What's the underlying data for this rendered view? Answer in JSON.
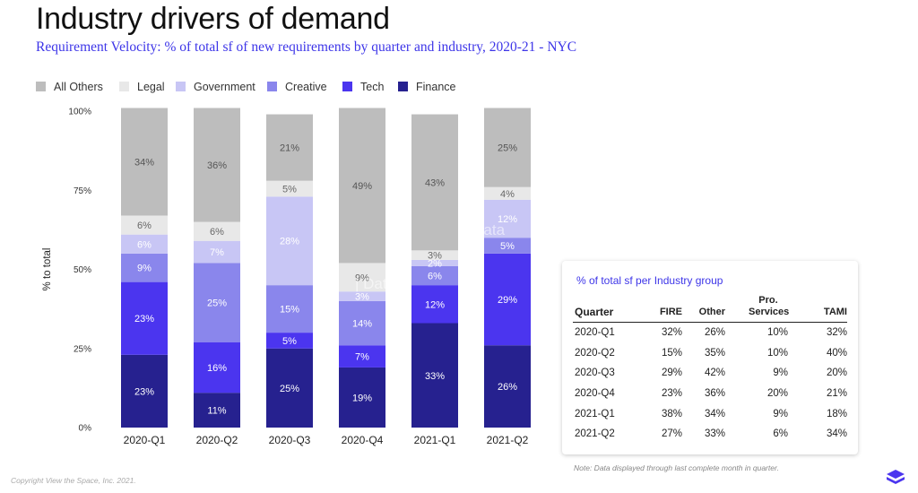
{
  "title": "Industry drivers of demand",
  "subtitle": "Requirement Velocity: % of total sf of new requirements by quarter and industry, 2020-21 - NYC",
  "chart_data": {
    "type": "bar",
    "stacked": true,
    "categories": [
      "2020-Q1",
      "2020-Q2",
      "2020-Q3",
      "2020-Q4",
      "2021-Q1",
      "2021-Q2"
    ],
    "ylabel": "% to total",
    "xlabel": "",
    "ylim": [
      0,
      100
    ],
    "yticks": [
      "0%",
      "25%",
      "50%",
      "75%",
      "100%"
    ],
    "legend_position": "top-left",
    "grid": false,
    "series": [
      {
        "name": "Finance",
        "color": "#26218f",
        "label_color": "#ffffff",
        "values": [
          23,
          11,
          25,
          19,
          33,
          26
        ]
      },
      {
        "name": "Tech",
        "color": "#4b35ef",
        "label_color": "#ffffff",
        "values": [
          23,
          16,
          5,
          7,
          12,
          29
        ]
      },
      {
        "name": "Creative",
        "color": "#8a86ec",
        "label_color": "#ffffff",
        "values": [
          9,
          25,
          15,
          14,
          6,
          5
        ]
      },
      {
        "name": "Government",
        "color": "#c8c6f5",
        "label_color": "#ffffff",
        "values": [
          6,
          7,
          28,
          3,
          2,
          12
        ]
      },
      {
        "name": "Legal",
        "color": "#e8e8e8",
        "label_color": "#666666",
        "values": [
          6,
          6,
          5,
          9,
          3,
          4
        ]
      },
      {
        "name": "All Others",
        "color": "#bdbdbd",
        "label_color": "#555555",
        "values": [
          34,
          36,
          21,
          49,
          43,
          25
        ]
      }
    ],
    "legend_order": [
      "All Others",
      "Legal",
      "Government",
      "Creative",
      "Tech",
      "Finance"
    ]
  },
  "table": {
    "title": "% of total sf per Industry group",
    "headers": [
      "Quarter",
      "FIRE",
      "Other",
      "Pro. Services",
      "TAMI"
    ],
    "rows": [
      [
        "2020-Q1",
        "32%",
        "26%",
        "10%",
        "32%"
      ],
      [
        "2020-Q2",
        "15%",
        "35%",
        "10%",
        "40%"
      ],
      [
        "2020-Q3",
        "29%",
        "42%",
        "9%",
        "20%"
      ],
      [
        "2020-Q4",
        "23%",
        "36%",
        "20%",
        "21%"
      ],
      [
        "2021-Q1",
        "38%",
        "34%",
        "9%",
        "18%"
      ],
      [
        "2021-Q2",
        "27%",
        "33%",
        "6%",
        "34%"
      ]
    ]
  },
  "watermark": "Data",
  "note": "Note: Data displayed through last complete month in quarter.",
  "copyright": "Copyright View the Space, Inc. 2021.",
  "logo_icon": "vts-cube-logo-icon"
}
